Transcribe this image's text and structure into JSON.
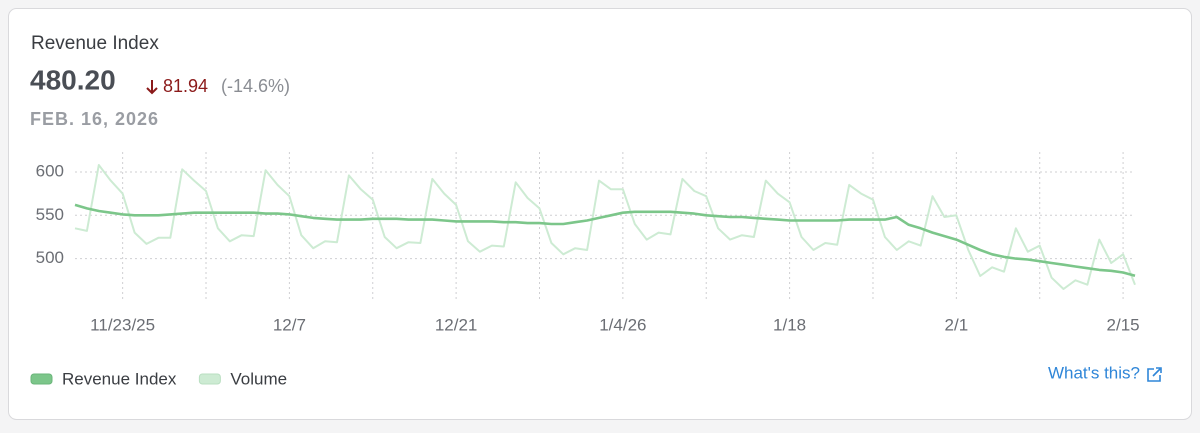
{
  "header": {
    "value": "480.20",
    "change": "81.94",
    "change_pct": "(-14.6%)",
    "date": "FEB. 16, 2026"
  },
  "link": "What's this?",
  "chart_data": {
    "type": "line",
    "title": "Revenue Index",
    "x": [
      "2025-11-19",
      "2025-11-20",
      "2025-11-21",
      "2025-11-22",
      "2025-11-23",
      "2025-11-24",
      "2025-11-25",
      "2025-11-26",
      "2025-11-27",
      "2025-11-28",
      "2025-11-29",
      "2025-11-30",
      "2025-12-01",
      "2025-12-02",
      "2025-12-03",
      "2025-12-04",
      "2025-12-05",
      "2025-12-06",
      "2025-12-07",
      "2025-12-08",
      "2025-12-09",
      "2025-12-10",
      "2025-12-11",
      "2025-12-12",
      "2025-12-13",
      "2025-12-14",
      "2025-12-15",
      "2025-12-16",
      "2025-12-17",
      "2025-12-18",
      "2025-12-19",
      "2025-12-20",
      "2025-12-21",
      "2025-12-22",
      "2025-12-23",
      "2025-12-24",
      "2025-12-25",
      "2025-12-26",
      "2025-12-27",
      "2025-12-28",
      "2025-12-29",
      "2025-12-30",
      "2025-12-31",
      "2026-01-01",
      "2026-01-02",
      "2026-01-03",
      "2026-01-04",
      "2026-01-05",
      "2026-01-06",
      "2026-01-07",
      "2026-01-08",
      "2026-01-09",
      "2026-01-10",
      "2026-01-11",
      "2026-01-12",
      "2026-01-13",
      "2026-01-14",
      "2026-01-15",
      "2026-01-16",
      "2026-01-17",
      "2026-01-18",
      "2026-01-19",
      "2026-01-20",
      "2026-01-21",
      "2026-01-22",
      "2026-01-23",
      "2026-01-24",
      "2026-01-25",
      "2026-01-26",
      "2026-01-27",
      "2026-01-28",
      "2026-01-29",
      "2026-01-30",
      "2026-01-31",
      "2026-02-01",
      "2026-02-02",
      "2026-02-03",
      "2026-02-04",
      "2026-02-05",
      "2026-02-06",
      "2026-02-07",
      "2026-02-08",
      "2026-02-09",
      "2026-02-10",
      "2026-02-11",
      "2026-02-12",
      "2026-02-13",
      "2026-02-14",
      "2026-02-15",
      "2026-02-16"
    ],
    "series": [
      {
        "name": "Revenue Index",
        "color": "#7cc68a",
        "values": [
          562,
          558,
          555,
          553,
          551,
          550,
          550,
          550,
          551,
          552,
          553,
          553,
          553,
          553,
          553,
          553,
          552,
          552,
          551,
          549,
          547,
          546,
          545,
          545,
          545,
          546,
          546,
          546,
          545,
          545,
          545,
          544,
          543,
          543,
          543,
          543,
          542,
          542,
          541,
          541,
          540,
          540,
          542,
          544,
          547,
          550,
          553,
          554,
          554,
          554,
          554,
          553,
          552,
          550,
          549,
          548,
          548,
          547,
          546,
          545,
          544,
          544,
          544,
          544,
          544,
          545,
          545,
          545,
          545,
          548,
          539,
          535,
          530,
          526,
          522,
          516,
          510,
          505,
          502,
          500,
          499,
          497,
          495,
          493,
          491,
          489,
          487,
          486,
          484,
          480.2
        ]
      },
      {
        "name": "Volume",
        "color": "#cdebd3",
        "values": [
          535,
          532,
          608,
          590,
          575,
          530,
          517,
          524,
          524,
          603,
          590,
          578,
          535,
          520,
          527,
          526,
          602,
          585,
          572,
          527,
          512,
          520,
          519,
          596,
          580,
          568,
          525,
          512,
          519,
          518,
          592,
          575,
          562,
          520,
          508,
          515,
          514,
          588,
          570,
          558,
          518,
          505,
          512,
          510,
          590,
          580,
          580,
          540,
          522,
          530,
          528,
          592,
          578,
          572,
          535,
          522,
          527,
          525,
          590,
          575,
          565,
          525,
          510,
          518,
          516,
          585,
          575,
          568,
          525,
          510,
          520,
          515,
          572,
          548,
          550,
          510,
          480,
          490,
          485,
          535,
          508,
          515,
          478,
          465,
          475,
          470,
          522,
          495,
          505,
          470
        ]
      }
    ],
    "xlim": [
      "2025-11-19",
      "2026-02-16"
    ],
    "xticks": [
      {
        "value": "2025-11-23",
        "label": "11/23/25"
      },
      {
        "value": "2025-12-07",
        "label": "12/7"
      },
      {
        "value": "2025-12-21",
        "label": "12/21"
      },
      {
        "value": "2026-01-04",
        "label": "1/4/26"
      },
      {
        "value": "2026-01-18",
        "label": "1/18"
      },
      {
        "value": "2026-02-01",
        "label": "2/1"
      },
      {
        "value": "2026-02-15",
        "label": "2/15"
      }
    ],
    "ylim": [
      450,
      623
    ],
    "yticks": [
      500,
      550,
      600
    ],
    "grid": true
  }
}
